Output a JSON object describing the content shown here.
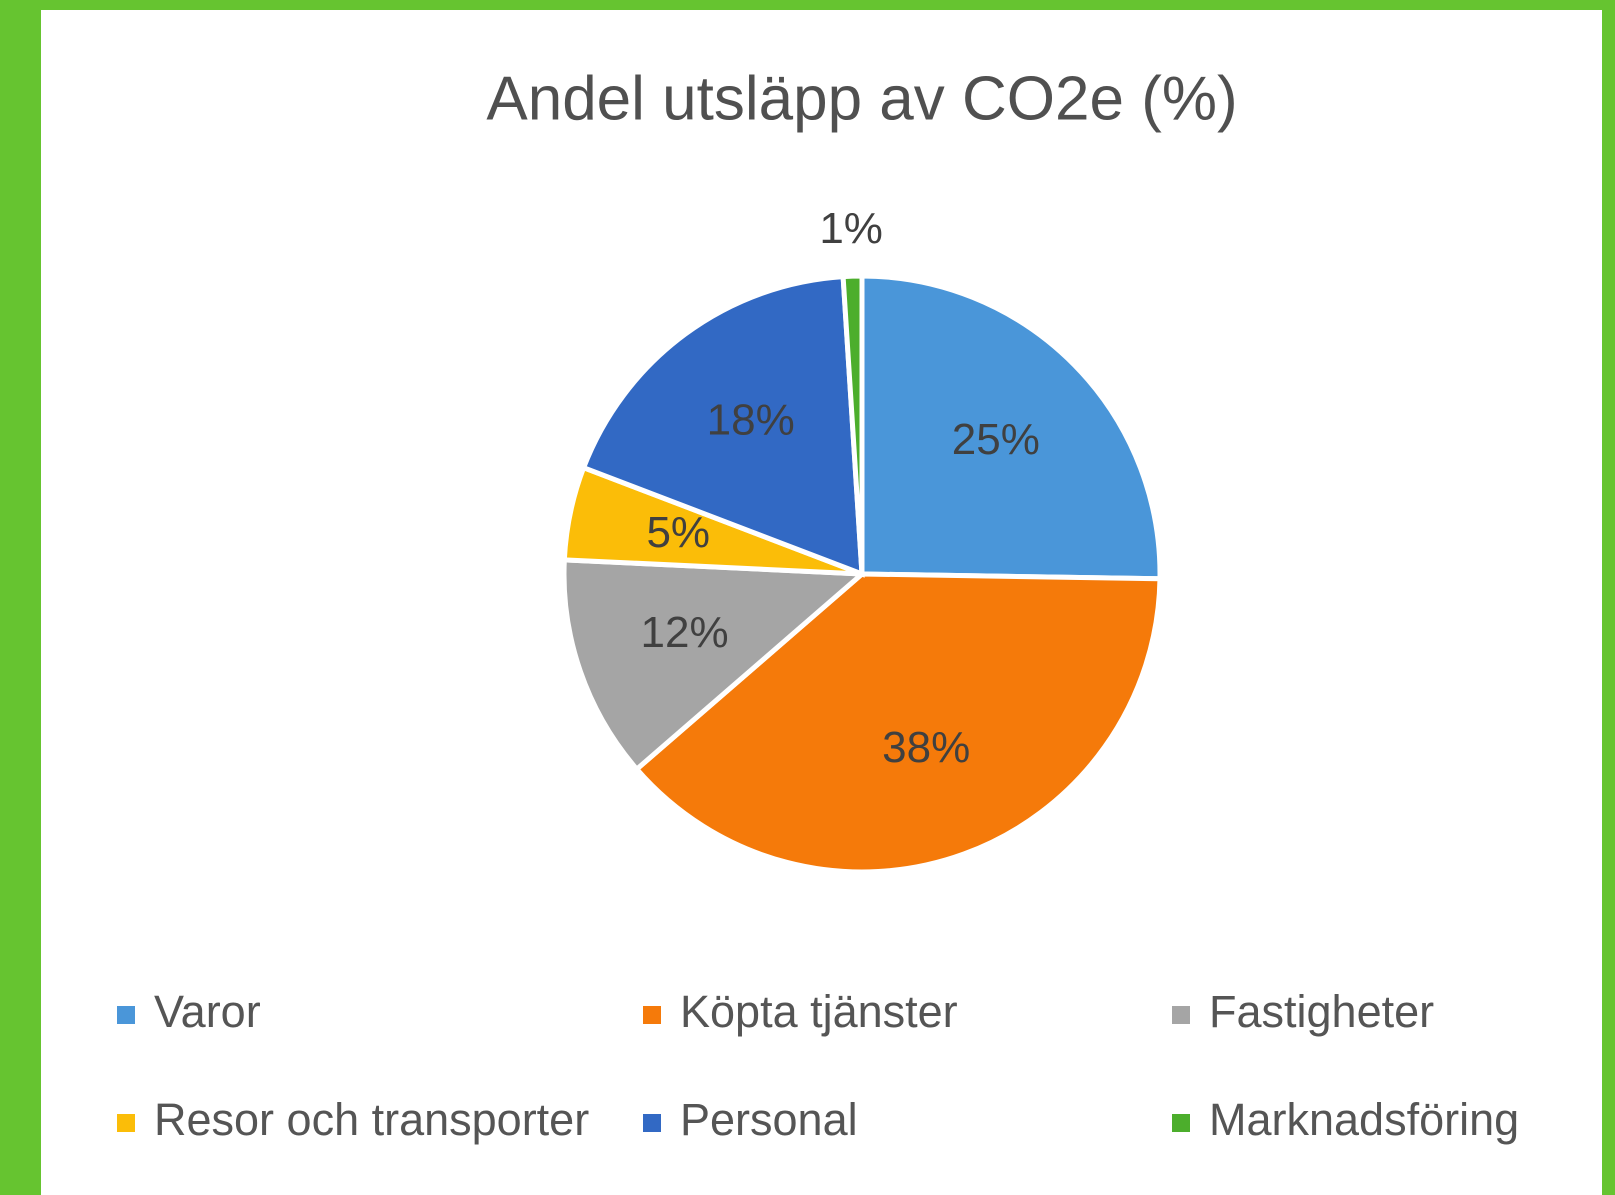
{
  "chart_data": {
    "type": "pie",
    "title": "Andel utsläpp av CO2e (%)",
    "categories": [
      "Varor",
      "Köpta tjänster",
      "Fastigheter",
      "Resor och transporter",
      "Personal",
      "Marknadsföring"
    ],
    "values": [
      25,
      38,
      12,
      5,
      18,
      1
    ],
    "value_labels": [
      "25%",
      "38%",
      "12%",
      "5%",
      "18%",
      "1%"
    ],
    "colors": [
      "#4a96d9",
      "#f57a0a",
      "#a5a5a5",
      "#fbbd08",
      "#3269c4",
      "#4cae2c"
    ],
    "legend": "bottom"
  }
}
